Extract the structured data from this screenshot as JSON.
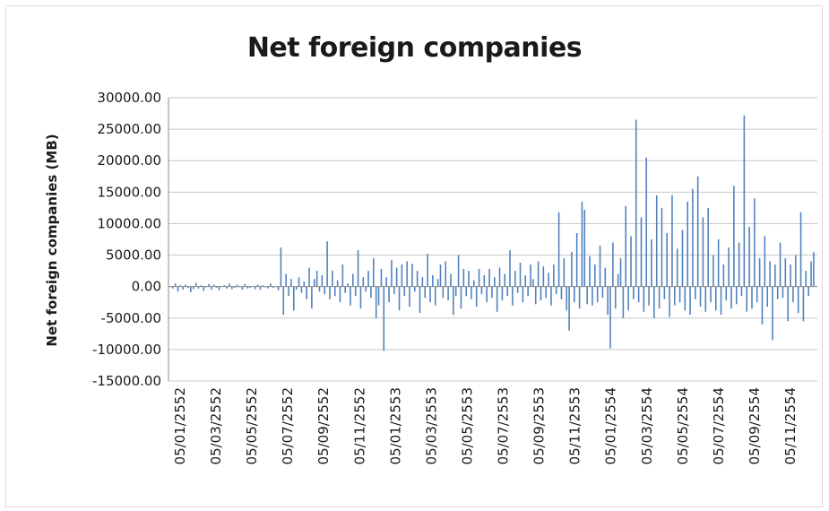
{
  "chart_data": {
    "type": "bar",
    "title": "Net foreign companies",
    "xlabel": "",
    "ylabel": "Net foreign companies (MB)",
    "ylim": [
      -15000,
      30000
    ],
    "y_ticks": [
      "30000.00",
      "25000.00",
      "20000.00",
      "15000.00",
      "10000.00",
      "5000.00",
      "0.00",
      "-5000.00",
      "-10000.00",
      "-15000.00"
    ],
    "y_tick_values": [
      30000,
      25000,
      20000,
      15000,
      10000,
      5000,
      0,
      -5000,
      -10000,
      -15000
    ],
    "x_ticks": [
      "05/01/2552",
      "05/03/2552",
      "05/05/2552",
      "05/07/2552",
      "05/09/2552",
      "05/11/2552",
      "05/01/2553",
      "05/03/2553",
      "05/05/2553",
      "05/07/2553",
      "05/09/2553",
      "05/11/2553",
      "05/01/2554",
      "05/03/2554",
      "05/05/2554",
      "05/07/2554",
      "05/09/2554",
      "05/11/2554"
    ],
    "grid": true,
    "legend": "none",
    "color": "#4f81bd",
    "series": [
      {
        "values": [
          -300,
          500,
          -800,
          200,
          -500,
          300,
          -200,
          -900,
          -400,
          600,
          -300,
          200,
          -700,
          -100,
          400,
          -500,
          300,
          -200,
          -600,
          100,
          200,
          -300,
          500,
          -400,
          -200,
          300,
          -100,
          -500,
          400,
          -300,
          -200,
          100,
          -400,
          300,
          -500,
          200,
          -100,
          -300,
          500,
          -200,
          100,
          -600,
          6200,
          -4500,
          2000,
          -1500,
          1200,
          -3800,
          -500,
          1500,
          -1000,
          800,
          -2000,
          3000,
          -3500,
          1200,
          2500,
          -800,
          1800,
          -1200,
          7200,
          -2000,
          2500,
          -1500,
          1000,
          -2500,
          3500,
          -1000,
          500,
          -3000,
          2000,
          -1500,
          5800,
          -3500,
          1500,
          -800,
          2500,
          -1800,
          4500,
          -5000,
          -3000,
          2800,
          -10200,
          1500,
          -2500,
          4200,
          -1200,
          3000,
          -3800,
          3500,
          -1500,
          4000,
          -3200,
          3600,
          -800,
          2500,
          -4200,
          1500,
          -1800,
          5200,
          -2500,
          1800,
          -3000,
          1200,
          3500,
          -1800,
          4000,
          -2200,
          2000,
          -4500,
          -1500,
          5000,
          -3500,
          2800,
          -1500,
          2500,
          -2000,
          1000,
          -3200,
          2800,
          -1200,
          1800,
          -2500,
          2800,
          -1800,
          1500,
          -4000,
          3000,
          -2200,
          2000,
          -1500,
          5800,
          -3000,
          2500,
          -1000,
          3800,
          -2500,
          1800,
          -1500,
          3500,
          1200,
          -2800,
          4000,
          -2200,
          3200,
          -1800,
          2200,
          -3000,
          3500,
          -1200,
          11800,
          -2000,
          4500,
          -3800,
          -7000,
          5500,
          -2500,
          8500,
          -3500,
          13500,
          12200,
          -2800,
          4800,
          -3000,
          3500,
          -2500,
          6500,
          -1800,
          3000,
          -4500,
          -9800,
          7000,
          -3500,
          2000,
          4500,
          -5000,
          12800,
          -3800,
          8000,
          -2000,
          26500,
          -2500,
          11000,
          -4000,
          20500,
          -3000,
          7500,
          -5000,
          14500,
          -3500,
          12500,
          -2000,
          8500,
          -4800,
          14500,
          -3000,
          6000,
          -2500,
          9000,
          -3800,
          13500,
          -4500,
          15500,
          -2000,
          17500,
          -3200,
          11000,
          -4000,
          12500,
          -2500,
          5000,
          -3800,
          7500,
          -4500,
          3500,
          -2200,
          6200,
          -3500,
          16000,
          -2800,
          7000,
          -1500,
          27200,
          -4000,
          9500,
          -3500,
          14000,
          -2500,
          4500,
          -6000,
          8000,
          -3200,
          4000,
          -8500,
          3500,
          -2000,
          7000,
          -1800,
          4500,
          -5500,
          3500,
          -2500,
          5000,
          -4200,
          11800,
          -5500,
          2500,
          -1500,
          4000,
          5500
        ]
      }
    ]
  }
}
